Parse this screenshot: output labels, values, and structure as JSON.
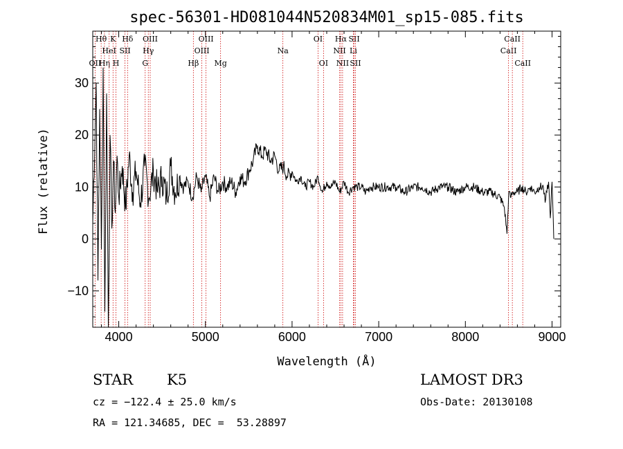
{
  "chart_data": {
    "type": "line",
    "title": "spec-56301-HD081044N520834M01_sp15-085.fits",
    "xlabel": "Wavelength (Å)",
    "ylabel": "Flux (relative)",
    "xlim": [
      3700,
      9100
    ],
    "ylim": [
      -17,
      40
    ],
    "xticks": [
      4000,
      5000,
      6000,
      7000,
      8000,
      9000
    ],
    "yticks": [
      -10,
      0,
      10,
      20,
      30
    ],
    "grid": false,
    "series": [
      {
        "name": "spectrum",
        "x": [
          3700,
          3740,
          3760,
          3780,
          3800,
          3820,
          3840,
          3860,
          3880,
          3900,
          3920,
          3940,
          3960,
          3980,
          4000,
          4040,
          4080,
          4120,
          4160,
          4200,
          4250,
          4300,
          4350,
          4400,
          4450,
          4500,
          4550,
          4600,
          4650,
          4700,
          4750,
          4800,
          4850,
          4900,
          4950,
          5000,
          5050,
          5100,
          5150,
          5200,
          5250,
          5300,
          5350,
          5400,
          5450,
          5500,
          5550,
          5600,
          5650,
          5700,
          5750,
          5800,
          5850,
          5900,
          5950,
          6000,
          6050,
          6100,
          6150,
          6200,
          6250,
          6300,
          6350,
          6400,
          6450,
          6500,
          6550,
          6600,
          6650,
          6700,
          6750,
          6800,
          6850,
          6900,
          6950,
          7000,
          7100,
          7200,
          7300,
          7400,
          7500,
          7600,
          7700,
          7800,
          7900,
          8000,
          8100,
          8200,
          8300,
          8400,
          8450,
          8480,
          8500,
          8520,
          8550,
          8600,
          8650,
          8700,
          8750,
          8800,
          8850,
          8900,
          8920,
          8940,
          8960,
          8980,
          9000,
          9020
        ],
        "values": [
          3,
          30,
          -8,
          25,
          -2,
          33,
          -14,
          28,
          -17,
          20,
          2,
          15,
          5,
          16,
          8,
          14,
          6,
          16,
          9,
          13,
          7,
          14,
          8,
          13,
          9,
          12,
          8,
          14,
          9,
          12,
          10,
          11,
          8,
          12,
          9,
          12,
          8,
          12,
          9,
          11,
          10,
          11,
          9,
          12,
          11,
          13,
          15,
          18,
          16,
          17,
          15,
          16,
          13,
          14,
          12,
          13,
          11,
          12,
          10,
          11,
          10,
          12,
          9,
          11,
          10,
          11,
          9,
          11,
          9,
          10,
          10,
          10,
          9,
          10,
          10,
          10,
          10,
          10,
          9,
          10,
          10,
          9,
          10,
          10,
          9,
          10,
          10,
          9,
          9,
          8,
          6,
          1,
          9,
          8,
          9,
          9,
          10,
          9,
          10,
          9,
          10,
          10,
          7,
          9,
          11,
          4,
          11,
          0
        ]
      }
    ],
    "emission_lines": [
      {
        "name": "OII",
        "wavelength": 3727,
        "row": 2
      },
      {
        "name": "Hθ",
        "wavelength": 3797,
        "row": 0
      },
      {
        "name": "Hη",
        "wavelength": 3835,
        "row": 2
      },
      {
        "name": "K",
        "wavelength": 3934,
        "row": 0
      },
      {
        "name": "HeI",
        "wavelength": 3889,
        "row": 1
      },
      {
        "name": "H",
        "wavelength": 3968,
        "row": 2
      },
      {
        "name": "SII",
        "wavelength": 4072,
        "row": 1
      },
      {
        "name": "Hδ",
        "wavelength": 4102,
        "row": 0
      },
      {
        "name": "G",
        "wavelength": 4305,
        "row": 2
      },
      {
        "name": "Hγ",
        "wavelength": 4341,
        "row": 1
      },
      {
        "name": "OIII",
        "wavelength": 4363,
        "row": 0
      },
      {
        "name": "Hβ",
        "wavelength": 4861,
        "row": 2
      },
      {
        "name": "OIII",
        "wavelength": 4959,
        "row": 1
      },
      {
        "name": "OIII",
        "wavelength": 5007,
        "row": 0
      },
      {
        "name": "Mg",
        "wavelength": 5175,
        "row": 2
      },
      {
        "name": "Na",
        "wavelength": 5894,
        "row": 1
      },
      {
        "name": "OI",
        "wavelength": 6300,
        "row": 0
      },
      {
        "name": "OI",
        "wavelength": 6363,
        "row": 2
      },
      {
        "name": "NII",
        "wavelength": 6548,
        "row": 1
      },
      {
        "name": "Hα",
        "wavelength": 6563,
        "row": 0
      },
      {
        "name": "NII",
        "wavelength": 6583,
        "row": 2
      },
      {
        "name": "Li",
        "wavelength": 6707,
        "row": 1
      },
      {
        "name": "SII",
        "wavelength": 6716,
        "row": 0
      },
      {
        "name": "SII",
        "wavelength": 6731,
        "row": 2
      },
      {
        "name": "CaII",
        "wavelength": 8498,
        "row": 1
      },
      {
        "name": "CaII",
        "wavelength": 8542,
        "row": 0
      },
      {
        "name": "CaII",
        "wavelength": 8662,
        "row": 2
      }
    ]
  },
  "info": {
    "class": "STAR",
    "subclass": "K5",
    "survey": "LAMOST DR3",
    "cz": "cz = −122.4 ± 25.0 km/s",
    "obs_date": "Obs-Date: 20130108",
    "coords": "RA = 121.34685, DEC =  53.28897"
  },
  "colors": {
    "line_marker": "#cc0000",
    "spectrum": "#000000"
  }
}
